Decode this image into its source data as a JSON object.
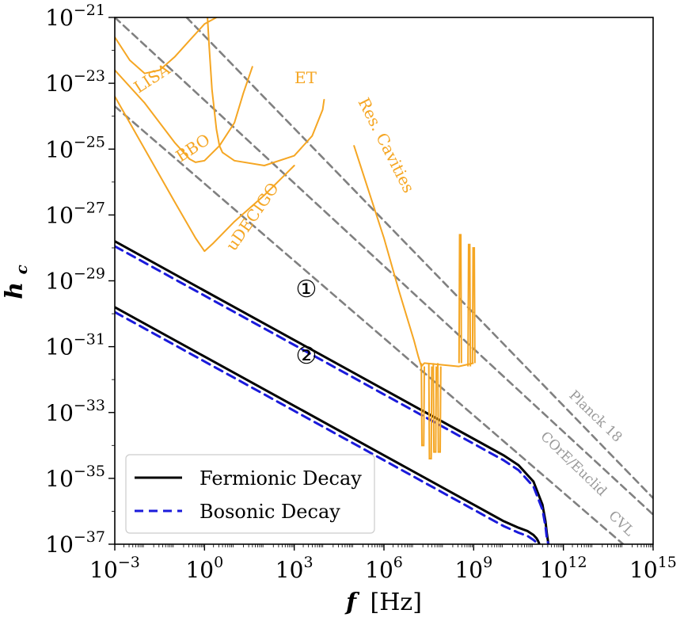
{
  "chart_data": {
    "type": "line",
    "xlabel_symbol": "f",
    "xlabel_unit": "[Hz]",
    "ylabel_symbol": "h",
    "ylabel_sub": "c",
    "xscale": "log",
    "yscale": "log",
    "xlim": [
      0.001,
      1000000000000000.0
    ],
    "ylim": [
      1e-37,
      1e-21
    ],
    "grid": false,
    "legend_placement": "bottom-left",
    "x_ticks": [
      {
        "base": "10",
        "exp": "−3"
      },
      {
        "base": "10",
        "exp": "0"
      },
      {
        "base": "10",
        "exp": "3"
      },
      {
        "base": "10",
        "exp": "6"
      },
      {
        "base": "10",
        "exp": "9"
      },
      {
        "base": "10",
        "exp": "12"
      },
      {
        "base": "10",
        "exp": "15"
      }
    ],
    "y_ticks": [
      {
        "base": "10",
        "exp": "−21"
      },
      {
        "base": "10",
        "exp": "−23"
      },
      {
        "base": "10",
        "exp": "−25"
      },
      {
        "base": "10",
        "exp": "−27"
      },
      {
        "base": "10",
        "exp": "−29"
      },
      {
        "base": "10",
        "exp": "−31"
      },
      {
        "base": "10",
        "exp": "−33"
      },
      {
        "base": "10",
        "exp": "−35"
      },
      {
        "base": "10",
        "exp": "−37"
      }
    ],
    "colors": {
      "fermionic": "#000000",
      "bosonic": "#1a1adb",
      "sensitivity": "#f5a623",
      "constraints": "#808080",
      "annotation_gray": "#999999"
    },
    "series": [
      {
        "name": "Fermionic Decay",
        "id": "ferm1",
        "style": "solid",
        "color": "#000000",
        "log10_x": [
          -3,
          0,
          3,
          6,
          9,
          10,
          10.5,
          11,
          11.3,
          11.4,
          11.45,
          11.5
        ],
        "log10_y": [
          -27.8,
          -29.3,
          -30.8,
          -32.3,
          -33.8,
          -34.3,
          -34.6,
          -35.1,
          -35.8,
          -36.3,
          -36.7,
          -37
        ]
      },
      {
        "name": "Bosonic Decay",
        "id": "bos1",
        "style": "dashed",
        "color": "#1a1adb",
        "log10_x": [
          -3,
          0,
          3,
          6,
          9,
          10,
          10.5,
          11,
          11.3,
          11.4,
          11.45,
          11.5
        ],
        "log10_y": [
          -27.95,
          -29.45,
          -30.95,
          -32.45,
          -33.95,
          -34.45,
          -34.75,
          -35.25,
          -35.95,
          -36.45,
          -36.85,
          -37
        ]
      },
      {
        "name": "",
        "id": "ferm2",
        "style": "solid",
        "color": "#000000",
        "log10_x": [
          -3,
          0,
          3,
          6,
          9,
          10,
          10.5,
          10.8,
          11,
          11.1,
          11.15,
          11.2
        ],
        "log10_y": [
          -29.8,
          -31.3,
          -32.8,
          -34.3,
          -35.8,
          -36.3,
          -36.5,
          -36.6,
          -36.72,
          -36.82,
          -36.9,
          -37
        ]
      },
      {
        "name": "",
        "id": "bos2",
        "style": "dashed",
        "color": "#1a1adb",
        "log10_x": [
          -3,
          0,
          3,
          6,
          9,
          10,
          10.5,
          10.8,
          11,
          11.1,
          11.15,
          11.2
        ],
        "log10_y": [
          -29.95,
          -31.45,
          -32.95,
          -34.45,
          -35.95,
          -36.45,
          -36.65,
          -36.75,
          -36.87,
          -36.95,
          -36.98,
          -37
        ]
      },
      {
        "name": "Planck 18",
        "id": "planck",
        "style": "dashed",
        "color": "#808080",
        "log10_x": [
          -0.6,
          15
        ],
        "log10_y": [
          -21,
          -35.6
        ]
      },
      {
        "name": "COrE/Euclid",
        "id": "core",
        "style": "dashed",
        "color": "#808080",
        "log10_x": [
          -3,
          15
        ],
        "log10_y": [
          -21,
          -36.1
        ]
      },
      {
        "name": "CVL",
        "id": "cvl",
        "style": "dashed",
        "color": "#808080",
        "log10_x": [
          -3,
          14
        ],
        "log10_y": [
          -23.7,
          -37
        ]
      },
      {
        "name": "LISA",
        "id": "lisa",
        "style": "solid",
        "color": "#f5a623",
        "log10_x": [
          -3,
          -2.5,
          -2,
          -1.5,
          -1,
          -0.5,
          0,
          0.4
        ],
        "log10_y": [
          -21.6,
          -22.3,
          -22.7,
          -22.6,
          -22.2,
          -21.7,
          -21.2,
          -21
        ]
      },
      {
        "name": "BBO",
        "id": "bbo",
        "style": "solid",
        "color": "#f5a623",
        "log10_x": [
          -3,
          -2,
          -1.5,
          -1,
          -0.5,
          -0.3,
          0,
          0.5,
          1,
          1.3,
          1.6
        ],
        "log10_y": [
          -22.6,
          -23.6,
          -24.2,
          -24.8,
          -25.3,
          -25.4,
          -25.35,
          -24.9,
          -24.2,
          -23.3,
          -22.5
        ]
      },
      {
        "name": "ET",
        "id": "et",
        "style": "solid",
        "color": "#f5a623",
        "log10_x": [
          0.1,
          0.15,
          0.25,
          0.4,
          0.5,
          0.6,
          1,
          2,
          3,
          3.6,
          3.95,
          4
        ],
        "log10_y": [
          -21,
          -21.8,
          -23.2,
          -24.4,
          -24.9,
          -25.1,
          -25.35,
          -25.5,
          -25.2,
          -24.6,
          -23.8,
          -23.5
        ]
      },
      {
        "name": "uDECIGO",
        "id": "udecigo",
        "style": "solid",
        "color": "#f5a623",
        "log10_x": [
          -3,
          -2,
          -1,
          -0.3,
          0,
          0.3,
          1,
          2,
          3
        ],
        "log10_y": [
          -23.4,
          -25,
          -26.6,
          -27.7,
          -28.1,
          -27.85,
          -27.2,
          -26.4,
          -25.5
        ]
      },
      {
        "name": "Res. Cavities",
        "id": "rescav",
        "style": "solid",
        "color": "#f5a623",
        "log10_x": [
          5,
          5.5,
          6,
          6.5,
          7,
          7.15,
          7.25,
          7.35
        ],
        "log10_y": [
          -24.9,
          -26.3,
          -27.7,
          -29.3,
          -30.8,
          -31.3,
          -31.6,
          -31.5
        ],
        "spikes_log10_x": [
          7.3,
          7.55,
          7.7,
          7.85
        ],
        "spikes_log10_y": [
          -34.0,
          -34.0,
          -34.0,
          -34.0
        ],
        "spike_bottom_group": [
          -34.0,
          -34.4,
          -34.2,
          -34.2
        ],
        "high_spikes_log10_x": [
          8.55,
          8.85,
          9.0
        ],
        "high_spikes_top_log10_y": [
          -27.6,
          -27.9,
          -28.0
        ],
        "high_spikes_base_log10_y": [
          -31.5,
          -31.6,
          -31.5
        ]
      }
    ],
    "annotations": [
      {
        "text": "LISA",
        "color": "#f5a623"
      },
      {
        "text": "BBO",
        "color": "#f5a623"
      },
      {
        "text": "ET",
        "color": "#f5a623"
      },
      {
        "text": "uDECIGO",
        "color": "#f5a623"
      },
      {
        "text": "Res. Cavities",
        "color": "#f5a623"
      },
      {
        "text": "Planck 18",
        "color": "#999999"
      },
      {
        "text": "COrE/Euclid",
        "color": "#999999"
      },
      {
        "text": "CVL",
        "color": "#999999"
      },
      {
        "text": "①",
        "color": "#000000"
      },
      {
        "text": "②",
        "color": "#000000"
      }
    ],
    "legend": [
      {
        "label": "Fermionic Decay",
        "style": "solid",
        "color": "#000000"
      },
      {
        "label": "Bosonic Decay",
        "style": "dashed",
        "color": "#1a1adb"
      }
    ]
  }
}
